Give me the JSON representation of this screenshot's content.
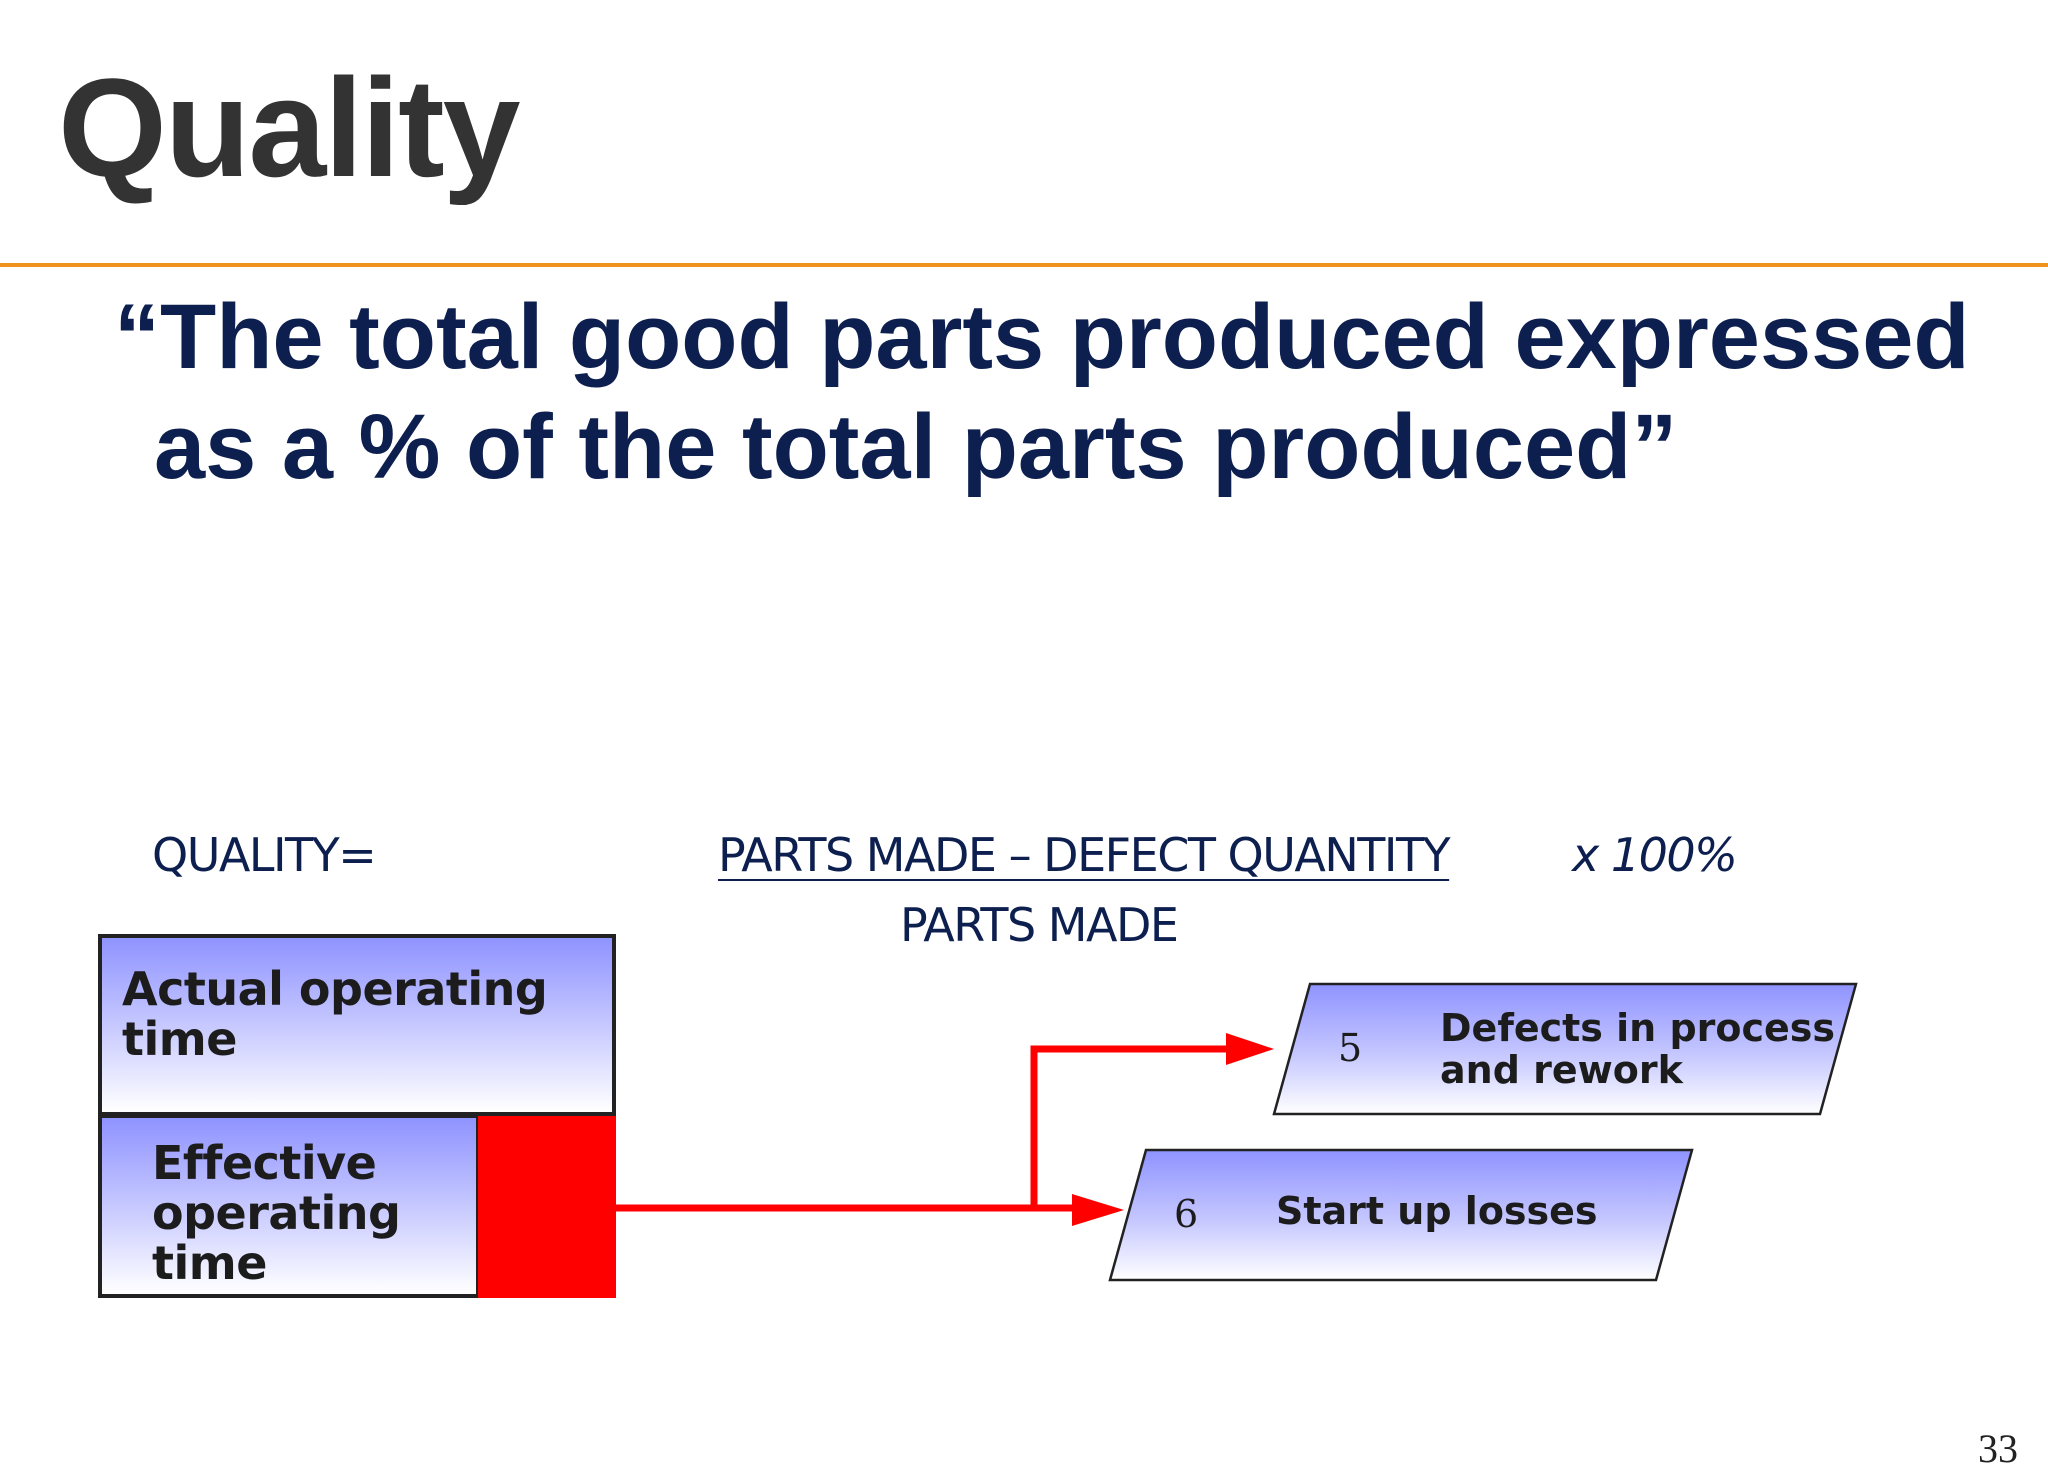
{
  "slide": {
    "title": "Quality",
    "quote": "“The total good parts produced expressed as a % of the total parts produced”",
    "page_number": "33"
  },
  "formula": {
    "label": "QUALITY=",
    "numerator": "PARTS MADE – DEFECT QUANTITY",
    "multiplier": "x 100%",
    "denominator": "PARTS MADE"
  },
  "diagram": {
    "actual_operating_time": [
      "Actual operating",
      "time"
    ],
    "effective_operating_time": [
      "Effective",
      "operating",
      "time"
    ],
    "losses": [
      {
        "number": "5",
        "lines": [
          "Defects in process",
          "and rework"
        ]
      },
      {
        "number": "6",
        "lines": [
          "Start up losses"
        ]
      }
    ],
    "colors": {
      "box_top": "#8f93ff",
      "box_bottom": "#ffffff",
      "loss": "#ff0000",
      "accent_rule": "#f0921e",
      "title_text": "#333333",
      "body_text": "#0d1f4f"
    }
  }
}
